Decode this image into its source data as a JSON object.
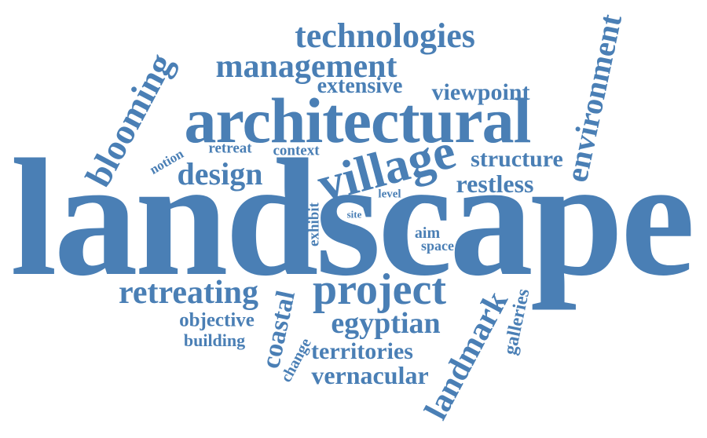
{
  "color": "#4a7fb5",
  "words": {
    "landscape": "landscape",
    "architectural": "architectural",
    "village": "village",
    "project": "project",
    "technologies": "technologies",
    "management": "management",
    "environment": "environment",
    "landmark": "landmark",
    "blooming": "blooming",
    "retreating": "retreating",
    "egyptian": "egyptian",
    "design": "design",
    "structure": "structure",
    "restless": "restless",
    "viewpoint": "viewpoint",
    "extensive": "extensive",
    "vernacular": "vernacular",
    "territories": "territories",
    "coastal": "coastal",
    "objective": "objective",
    "building": "building",
    "galleries": "galleries",
    "change": "change",
    "exhibit": "exhibit",
    "context": "context",
    "retreat": "retreat",
    "notion": "notion",
    "level": "level",
    "site": "site",
    "aim": "aim",
    "space": "space"
  }
}
